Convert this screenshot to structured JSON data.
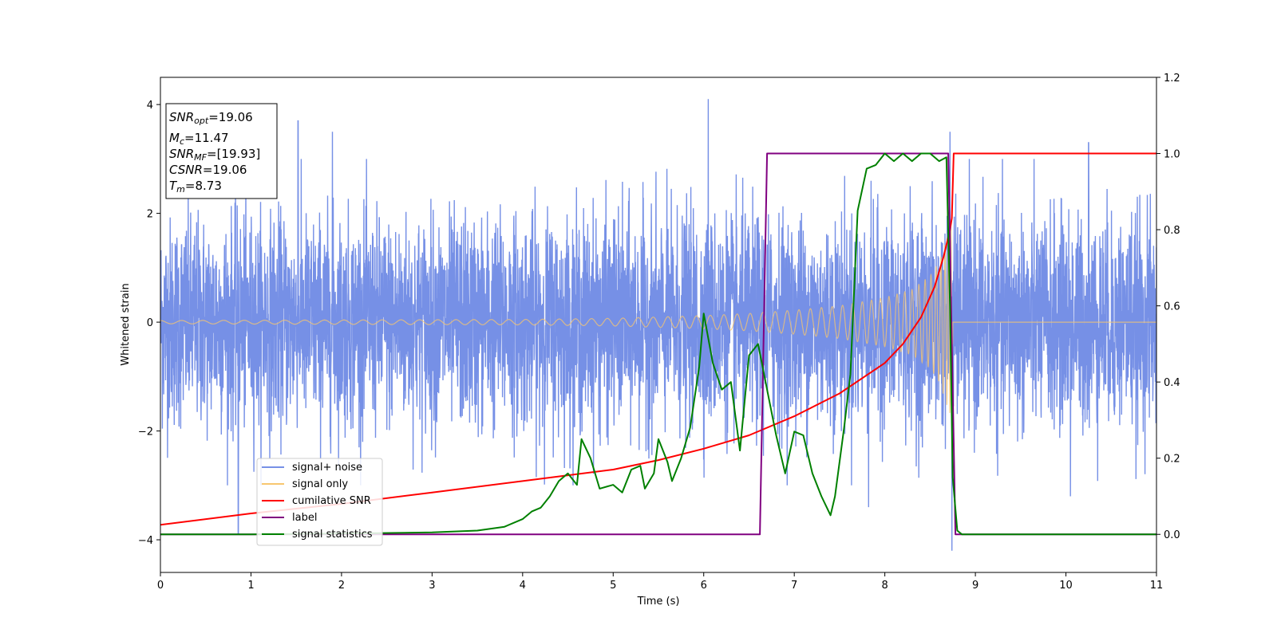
{
  "chart_data": {
    "type": "line",
    "xlabel": "Time (s)",
    "ylabel": "Whitened strain",
    "xlim": [
      0,
      11
    ],
    "ylim_left": [
      -4.6,
      4.5
    ],
    "ylim_right": [
      -0.1,
      1.2
    ],
    "x_ticks": [
      "0",
      "1",
      "2",
      "3",
      "4",
      "5",
      "6",
      "7",
      "8",
      "9",
      "10",
      "11"
    ],
    "y_ticks_left": [
      "4",
      "2",
      "0",
      "−2",
      "−4"
    ],
    "y_ticks_left_values": [
      4,
      2,
      0,
      -2,
      -4
    ],
    "y_ticks_right": [
      "1.2",
      "1.0",
      "0.8",
      "0.6",
      "0.4",
      "0.2",
      "0.0"
    ],
    "y_ticks_right_values": [
      1.2,
      1.0,
      0.8,
      0.6,
      0.4,
      0.2,
      0.0
    ],
    "annotation": {
      "snr_opt": {
        "sym": "SNR",
        "sub": "opt",
        "value": "=19.06"
      },
      "mc": {
        "sym": "M",
        "sub": "c",
        "value": "=11.47"
      },
      "snr_mf": {
        "sym": "SNR",
        "sub": "MF",
        "value": "=[19.93]"
      },
      "csnr": {
        "sym": "CSNR",
        "value": "=19.06"
      },
      "tm": {
        "sym": "T",
        "sub": "m",
        "value": "=8.73"
      }
    },
    "legend": {
      "placement": "lower-left",
      "entries": [
        {
          "label": "signal+ noise",
          "color": "#7690e6"
        },
        {
          "label": "signal only",
          "color": "#f7c66f"
        },
        {
          "label": "cumilative SNR",
          "color": "#ff0000"
        },
        {
          "label": "label",
          "color": "#800080"
        },
        {
          "label": "signal statistics",
          "color": "#008000"
        }
      ]
    },
    "series": [
      {
        "name": "signal+ noise",
        "axis": "left",
        "color": "#7690e6",
        "description": "whitened noisy strain, roughly Gaussian with amplitude ~1, spikes up to about +4.1 near t=6.05 and down to about -4.2 near t=8.73"
      },
      {
        "name": "signal only",
        "axis": "left",
        "color": "#f7c66f",
        "envelope": {
          "x": [
            0,
            2,
            4,
            5,
            6,
            6.5,
            7,
            7.5,
            8,
            8.3,
            8.5,
            8.6,
            8.7,
            8.74
          ],
          "y": [
            0.03,
            0.04,
            0.05,
            0.07,
            0.12,
            0.16,
            0.22,
            0.3,
            0.45,
            0.6,
            0.85,
            1.1,
            1.6,
            1.8
          ]
        },
        "ends_at": 8.75
      },
      {
        "name": "cumilative SNR",
        "axis": "right",
        "color": "#ff0000",
        "x": [
          0,
          1,
          2,
          3,
          4,
          5,
          5.5,
          6,
          6.5,
          7,
          7.5,
          8,
          8.2,
          8.4,
          8.55,
          8.65,
          8.72,
          8.74,
          8.76,
          11
        ],
        "y": [
          0.025,
          0.055,
          0.08,
          0.11,
          0.14,
          0.17,
          0.195,
          0.225,
          0.26,
          0.31,
          0.37,
          0.45,
          0.5,
          0.57,
          0.65,
          0.73,
          0.8,
          0.83,
          1.0,
          1.0
        ]
      },
      {
        "name": "label",
        "axis": "right",
        "color": "#800080",
        "x": [
          0,
          6.62,
          6.7,
          8.7,
          8.78,
          11
        ],
        "y": [
          0,
          0,
          1,
          1,
          0,
          0
        ]
      },
      {
        "name": "signal statistics",
        "axis": "right",
        "color": "#008000",
        "x": [
          0,
          1,
          2,
          3,
          3.5,
          3.8,
          4.0,
          4.1,
          4.2,
          4.3,
          4.4,
          4.5,
          4.6,
          4.65,
          4.75,
          4.85,
          5.0,
          5.1,
          5.2,
          5.3,
          5.35,
          5.45,
          5.5,
          5.6,
          5.65,
          5.75,
          5.85,
          5.95,
          6.0,
          6.1,
          6.2,
          6.3,
          6.4,
          6.5,
          6.6,
          6.7,
          6.8,
          6.9,
          7.0,
          7.1,
          7.2,
          7.3,
          7.4,
          7.45,
          7.55,
          7.62,
          7.7,
          7.8,
          7.9,
          8.0,
          8.1,
          8.2,
          8.3,
          8.4,
          8.5,
          8.6,
          8.68,
          8.72,
          8.75,
          8.8,
          8.85,
          9,
          11
        ],
        "y": [
          0,
          0,
          0.002,
          0.005,
          0.01,
          0.02,
          0.04,
          0.06,
          0.07,
          0.1,
          0.14,
          0.16,
          0.13,
          0.25,
          0.2,
          0.12,
          0.13,
          0.11,
          0.17,
          0.18,
          0.12,
          0.16,
          0.25,
          0.19,
          0.14,
          0.2,
          0.28,
          0.44,
          0.58,
          0.45,
          0.38,
          0.4,
          0.22,
          0.47,
          0.5,
          0.38,
          0.26,
          0.16,
          0.27,
          0.26,
          0.16,
          0.1,
          0.05,
          0.1,
          0.28,
          0.42,
          0.85,
          0.96,
          0.97,
          1.0,
          0.98,
          1.0,
          0.98,
          1.0,
          1.0,
          0.98,
          0.99,
          0.6,
          0.15,
          0.01,
          0.0,
          0.0,
          0.0
        ]
      }
    ]
  }
}
